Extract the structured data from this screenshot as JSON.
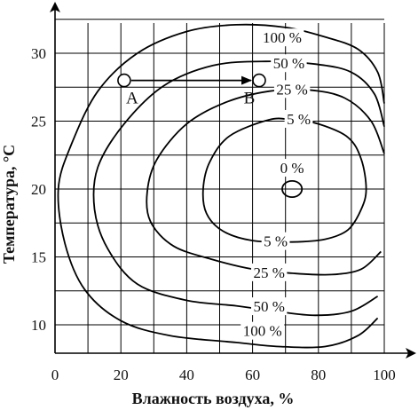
{
  "chart_data": {
    "type": "contour",
    "xlabel": "Влажность воздуха, %",
    "ylabel": "Температура, °С",
    "xlim": [
      0,
      105
    ],
    "ylim": [
      7.5,
      33.5
    ],
    "x_ticks": [
      "0",
      "20",
      "40",
      "60",
      "80",
      "100"
    ],
    "y_ticks": [
      "10",
      "15",
      "20",
      "25",
      "30"
    ],
    "grid": true,
    "contours": [
      {
        "label": "100 %",
        "label_pos": [
          69,
          31.1
        ],
        "points": [
          [
            100,
            26.3
          ],
          [
            98,
            28.6
          ],
          [
            92,
            30.3
          ],
          [
            82,
            31.2
          ],
          [
            70,
            31.9
          ],
          [
            55,
            32.1
          ],
          [
            40,
            31.6
          ],
          [
            25,
            30.0
          ],
          [
            13,
            27.2
          ],
          [
            5,
            23.3
          ],
          [
            1,
            20.0
          ],
          [
            3,
            16.0
          ],
          [
            9,
            12.6
          ],
          [
            20,
            10.3
          ],
          [
            35,
            9.2
          ],
          [
            55,
            8.7
          ],
          [
            68,
            8.4
          ],
          [
            82,
            8.4
          ],
          [
            92,
            9.2
          ],
          [
            98,
            10.5
          ]
        ]
      },
      {
        "label": "50 %",
        "label_pos": [
          71,
          29.2
        ],
        "points": [
          [
            100,
            24.6
          ],
          [
            97,
            27.0
          ],
          [
            90,
            28.6
          ],
          [
            79,
            29.2
          ],
          [
            64,
            29.4
          ],
          [
            48,
            29.1
          ],
          [
            33,
            27.6
          ],
          [
            21,
            24.8
          ],
          [
            13,
            21.6
          ],
          [
            12,
            18.5
          ],
          [
            16,
            15.6
          ],
          [
            25,
            13.0
          ],
          [
            40,
            11.8
          ],
          [
            55,
            11.4
          ],
          [
            67,
            11.0
          ],
          [
            79,
            10.7
          ],
          [
            90,
            11.0
          ],
          [
            98,
            12.1
          ]
        ]
      },
      {
        "label": "25 %",
        "label_pos": [
          72,
          27.3
        ],
        "points": [
          [
            100,
            22.6
          ],
          [
            96,
            25.0
          ],
          [
            88,
            26.7
          ],
          [
            77,
            27.3
          ],
          [
            65,
            27.2
          ],
          [
            52,
            26.4
          ],
          [
            40,
            24.8
          ],
          [
            31,
            22.2
          ],
          [
            28,
            19.8
          ],
          [
            29,
            17.6
          ],
          [
            36,
            15.8
          ],
          [
            48,
            14.8
          ],
          [
            60,
            14.1
          ],
          [
            72,
            13.8
          ],
          [
            84,
            13.7
          ],
          [
            93,
            14.1
          ],
          [
            99,
            15.4
          ]
        ]
      },
      {
        "label": "5 %",
        "label_pos": [
          74,
          25.1
        ],
        "points": [
          [
            65,
            25.1
          ],
          [
            53,
            23.9
          ],
          [
            47,
            22.0
          ],
          [
            45,
            20.0
          ],
          [
            46,
            18.2
          ],
          [
            51,
            16.9
          ],
          [
            60,
            16.2
          ],
          [
            72,
            16.1
          ],
          [
            82,
            16.3
          ],
          [
            89,
            17.0
          ],
          [
            93,
            18.5
          ],
          [
            94.5,
            20.0
          ],
          [
            93,
            22.2
          ],
          [
            89,
            23.8
          ],
          [
            80,
            24.8
          ],
          [
            72,
            25.1
          ]
        ]
      },
      {
        "label": "5 %",
        "label_pos": [
          67,
          16.1
        ],
        "points": []
      },
      {
        "label": "25 %",
        "label_pos": [
          65,
          13.8
        ],
        "points": []
      },
      {
        "label": "50 %",
        "label_pos": [
          65,
          11.3
        ],
        "points": []
      },
      {
        "label": "100 %",
        "label_pos": [
          63,
          9.5
        ],
        "points": []
      },
      {
        "label": "0 %",
        "label_pos": [
          72,
          21.5
        ],
        "ellipse": {
          "cx": 72,
          "cy": 20,
          "rx": 3,
          "ry": 0.4
        }
      }
    ],
    "points": [
      {
        "label": "A",
        "x": 21,
        "y": 28
      },
      {
        "label": "B",
        "x": 62,
        "y": 28
      }
    ],
    "arrow": {
      "from": "A",
      "to": "B"
    }
  }
}
